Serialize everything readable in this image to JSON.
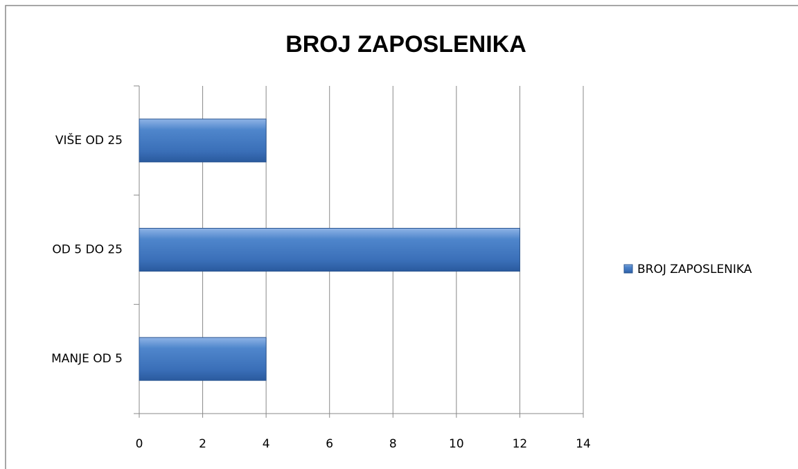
{
  "chart_data": {
    "type": "hbar",
    "title": "BROJ ZAPOSLENIKA",
    "categories": [
      "MANJE OD 5",
      "OD 5 DO 25",
      "VIŠE OD 25"
    ],
    "series": [
      {
        "name": "BROJ ZAPOSLENIKA",
        "color": "#3f75bd",
        "values": [
          4,
          12,
          4
        ]
      }
    ],
    "xlim": [
      0,
      14
    ],
    "xticks": [
      0,
      2,
      4,
      6,
      8,
      10,
      12,
      14
    ],
    "grid": true,
    "legend": "right"
  }
}
